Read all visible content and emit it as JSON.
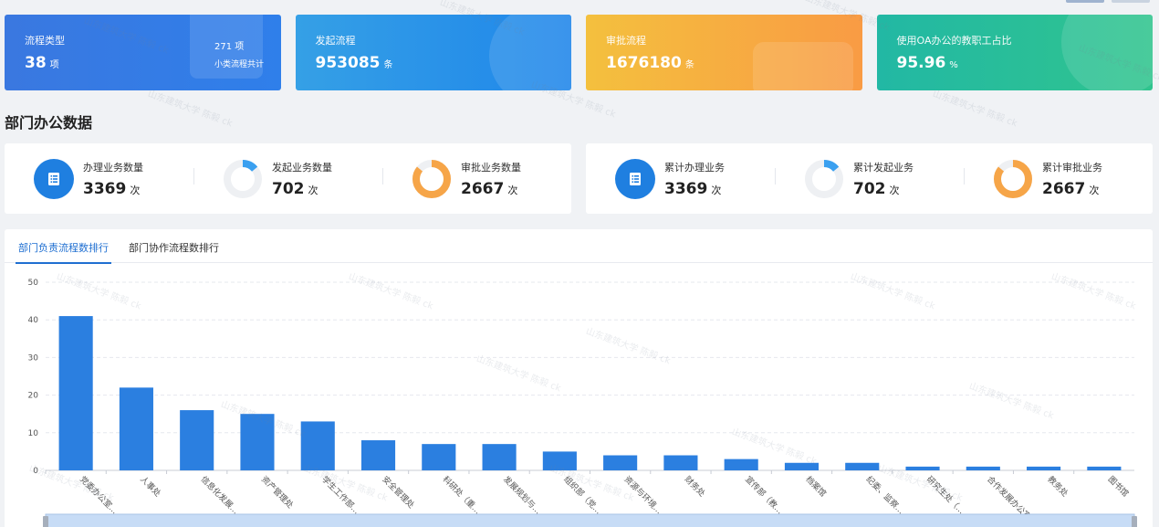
{
  "cards": [
    {
      "label": "流程类型",
      "value": "38",
      "unit": "项",
      "side_value": "271 项",
      "side_label": "小类流程共计",
      "color": "#3a78e0"
    },
    {
      "label": "发起流程",
      "value": "953085",
      "unit": "条",
      "color": "#2b90e8"
    },
    {
      "label": "审批流程",
      "value": "1676180",
      "unit": "条",
      "color": "#f6ad40"
    },
    {
      "label": "使用OA办公的教职工占比",
      "value": "95.96",
      "unit": "%",
      "color": "#27bd9a"
    }
  ],
  "section_title": "部门办公数据",
  "dept_stats": [
    {
      "label": "办理业务数量",
      "value": "3369",
      "unit": "次",
      "icon": "document-icon"
    },
    {
      "label": "发起业务数量",
      "value": "702",
      "unit": "次",
      "icon": "donut-icon",
      "ratio": 0.14,
      "color": "#3aa0f0"
    },
    {
      "label": "审批业务数量",
      "value": "2667",
      "unit": "次",
      "icon": "donut-icon",
      "ratio": 0.86,
      "color": "#f6a548"
    }
  ],
  "total_stats": [
    {
      "label": "累计办理业务",
      "value": "3369",
      "unit": "次",
      "icon": "document-icon"
    },
    {
      "label": "累计发起业务",
      "value": "702",
      "unit": "次",
      "icon": "donut-icon",
      "ratio": 0.14,
      "color": "#3aa0f0"
    },
    {
      "label": "累计审批业务",
      "value": "2667",
      "unit": "次",
      "icon": "donut-icon",
      "ratio": 0.86,
      "color": "#f6a548"
    }
  ],
  "tabs": [
    {
      "label": "部门负责流程数排行",
      "active": true
    },
    {
      "label": "部门协作流程数排行",
      "active": false
    }
  ],
  "watermark": "山东建筑大学 陈毅 ck",
  "chart_data": {
    "type": "bar",
    "categories": [
      "党委办公室…",
      "人事处",
      "信息化发展…",
      "资产管理处",
      "学生工作部…",
      "安全管理处",
      "科研处（重…",
      "发展规划与…",
      "组织部（党…",
      "资源与环境…",
      "财务处",
      "宣传部（教…",
      "档案馆",
      "纪委、监察…",
      "研究生处（…",
      "合作发展办公室",
      "教务处",
      "图书馆"
    ],
    "values": [
      41,
      22,
      16,
      15,
      13,
      8,
      7,
      7,
      5,
      4,
      4,
      3,
      2,
      2,
      1,
      1,
      1,
      1
    ],
    "yticks": [
      0,
      10,
      20,
      30,
      40,
      50
    ],
    "ylim": [
      0,
      50
    ],
    "bar_color": "#2b7fe0",
    "grid": true
  }
}
